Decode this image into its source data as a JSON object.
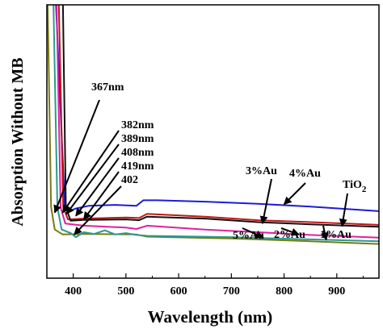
{
  "chart_data": {
    "type": "line",
    "xlabel": "Wavelength (nm)",
    "ylabel": "Absorption Without MB",
    "xlim": [
      350,
      980
    ],
    "ylim": [
      0,
      1
    ],
    "xticks": [
      400,
      500,
      600,
      700,
      800,
      900
    ],
    "grid": false,
    "series": [
      {
        "name": "TiO2",
        "color": "#1c1cd6",
        "points": [
          [
            366,
            1.06
          ],
          [
            384,
            0.26
          ],
          [
            392,
            0.245
          ],
          [
            405,
            0.255
          ],
          [
            430,
            0.265
          ],
          [
            480,
            0.268
          ],
          [
            520,
            0.265
          ],
          [
            533,
            0.285
          ],
          [
            560,
            0.285
          ],
          [
            650,
            0.28
          ],
          [
            750,
            0.272
          ],
          [
            850,
            0.262
          ],
          [
            980,
            0.245
          ]
        ]
      },
      {
        "name": "1%Au",
        "color": "#7a7a12",
        "points": [
          [
            351,
            1.06
          ],
          [
            358,
            0.26
          ],
          [
            365,
            0.178
          ],
          [
            380,
            0.16
          ],
          [
            420,
            0.162
          ],
          [
            520,
            0.16
          ],
          [
            540,
            0.152
          ],
          [
            700,
            0.145
          ],
          [
            850,
            0.135
          ],
          [
            980,
            0.125
          ]
        ]
      },
      {
        "name": "2%Au",
        "color": "#2a9a90",
        "points": [
          [
            362,
            1.06
          ],
          [
            370,
            0.26
          ],
          [
            378,
            0.178
          ],
          [
            395,
            0.165
          ],
          [
            405,
            0.15
          ],
          [
            420,
            0.168
          ],
          [
            440,
            0.162
          ],
          [
            460,
            0.175
          ],
          [
            480,
            0.16
          ],
          [
            500,
            0.165
          ],
          [
            520,
            0.158
          ],
          [
            540,
            0.155
          ],
          [
            700,
            0.15
          ],
          [
            850,
            0.142
          ],
          [
            980,
            0.135
          ]
        ]
      },
      {
        "name": "3%Au",
        "color": "#c01717",
        "points": [
          [
            372,
            1.06
          ],
          [
            381,
            0.26
          ],
          [
            390,
            0.215
          ],
          [
            420,
            0.218
          ],
          [
            500,
            0.222
          ],
          [
            525,
            0.22
          ],
          [
            540,
            0.235
          ],
          [
            650,
            0.225
          ],
          [
            750,
            0.212
          ],
          [
            850,
            0.205
          ],
          [
            980,
            0.195
          ]
        ]
      },
      {
        "name": "4%Au",
        "color": "#111111",
        "points": [
          [
            380,
            1.06
          ],
          [
            386,
            0.26
          ],
          [
            395,
            0.21
          ],
          [
            420,
            0.213
          ],
          [
            500,
            0.215
          ],
          [
            525,
            0.212
          ],
          [
            540,
            0.225
          ],
          [
            650,
            0.218
          ],
          [
            750,
            0.205
          ],
          [
            850,
            0.197
          ],
          [
            980,
            0.188
          ]
        ]
      },
      {
        "name": "5%Au",
        "color": "#e0209e",
        "points": [
          [
            368,
            1.06
          ],
          [
            376,
            0.26
          ],
          [
            385,
            0.2
          ],
          [
            420,
            0.192
          ],
          [
            500,
            0.185
          ],
          [
            520,
            0.18
          ],
          [
            540,
            0.192
          ],
          [
            650,
            0.178
          ],
          [
            750,
            0.168
          ],
          [
            850,
            0.158
          ],
          [
            980,
            0.148
          ]
        ]
      }
    ],
    "annotations": [
      {
        "text": "367nm",
        "arrow_to": [
          365,
          0.24
        ]
      },
      {
        "text": "382nm",
        "arrow_to": [
          380,
          0.24
        ]
      },
      {
        "text": "389nm",
        "arrow_to": [
          387,
          0.235
        ]
      },
      {
        "text": "408nm",
        "arrow_to": [
          405,
          0.228
        ]
      },
      {
        "text": "419nm",
        "arrow_to": [
          420,
          0.215
        ]
      },
      {
        "text": "402",
        "arrow_to": [
          402,
          0.16
        ]
      }
    ],
    "legend_labels": [
      {
        "text": "3%Au",
        "arrow_to": [
          759,
          0.2
        ]
      },
      {
        "text": "4%Au",
        "arrow_to": [
          800,
          0.27
        ]
      },
      {
        "text": "TiO",
        "sub": "2",
        "arrow_to": [
          910,
          0.19
        ]
      },
      {
        "text": "5%Au",
        "arrow_to": [
          760,
          0.15
        ]
      },
      {
        "text": "2%Au",
        "arrow_to": [
          828,
          0.16
        ]
      },
      {
        "text": "1%Au",
        "arrow_to": [
          880,
          0.14
        ]
      }
    ]
  }
}
